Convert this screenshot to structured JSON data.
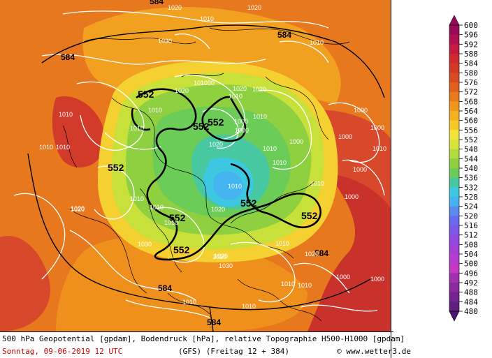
{
  "map": {
    "contour_labels": {
      "geopotential": [
        "584",
        "584",
        "584",
        "584",
        "584",
        "584",
        "552",
        "552",
        "552",
        "552",
        "552",
        "552",
        "552",
        "552"
      ],
      "pressure": [
        "1020",
        "1010",
        "1020",
        "1010",
        "1030",
        "1010",
        "1010",
        "1020",
        "1020",
        "1030",
        "1010",
        "1010",
        "1010",
        "1000",
        "1010",
        "1000",
        "1020",
        "1010",
        "1000",
        "1010",
        "1000",
        "1000",
        "1010",
        "1000",
        "1000",
        "1010",
        "1020",
        "1030",
        "1010",
        "1010",
        "1020",
        "1010",
        "1020",
        "1010",
        "1010",
        "1030",
        "1020",
        "1010",
        "1000",
        "1010",
        "1010",
        "1000",
        "1010",
        "1020",
        "1010",
        "1020",
        "1000",
        "1010",
        "1020"
      ]
    },
    "colors": {
      "deep_red": "#b8262a",
      "red": "#d2322a",
      "orange_red": "#e05a22",
      "orange": "#ee8a1c",
      "light_orange": "#f4a820",
      "yellow_orange": "#f6c828",
      "yellow": "#f2e23a",
      "yellow_green": "#c8e03a",
      "green": "#8ed040",
      "light_green": "#6ccc58",
      "teal": "#48c8a0",
      "cyan": "#3cc8e0",
      "light_blue": "#54b0f0"
    }
  },
  "legend": {
    "labels": [
      "600",
      "596",
      "592",
      "588",
      "584",
      "580",
      "576",
      "572",
      "568",
      "564",
      "560",
      "556",
      "552",
      "548",
      "544",
      "540",
      "536",
      "532",
      "528",
      "524",
      "520",
      "516",
      "512",
      "508",
      "504",
      "500",
      "496",
      "492",
      "488",
      "484",
      "480"
    ],
    "colors": [
      "#9a0a5a",
      "#b01050",
      "#c41a40",
      "#d02a30",
      "#d23a26",
      "#d84a22",
      "#e06020",
      "#e87a1c",
      "#f0961c",
      "#f4b020",
      "#f6c828",
      "#f2e23a",
      "#d8e43a",
      "#b0dc3e",
      "#8ed040",
      "#6ccc58",
      "#48c8a0",
      "#3cc8e0",
      "#44b4f0",
      "#5a8af0",
      "#6a6af0",
      "#7e58e8",
      "#9048e0",
      "#a440d8",
      "#b43cd0",
      "#c438c4",
      "#a030b0",
      "#8a2aa0",
      "#742490",
      "#601e80",
      "#4a1870"
    ]
  },
  "caption": {
    "line1": "500 hPa Geopotential [gpdam], Bodendruck [hPa], relative Topographie H500-H1000 [gpdam]",
    "date": "Sonntag, 09-06-2019  12 UTC",
    "model": "(GFS)  (Freitag 12 + 384)",
    "copyright": "© www.wetter3.de"
  }
}
